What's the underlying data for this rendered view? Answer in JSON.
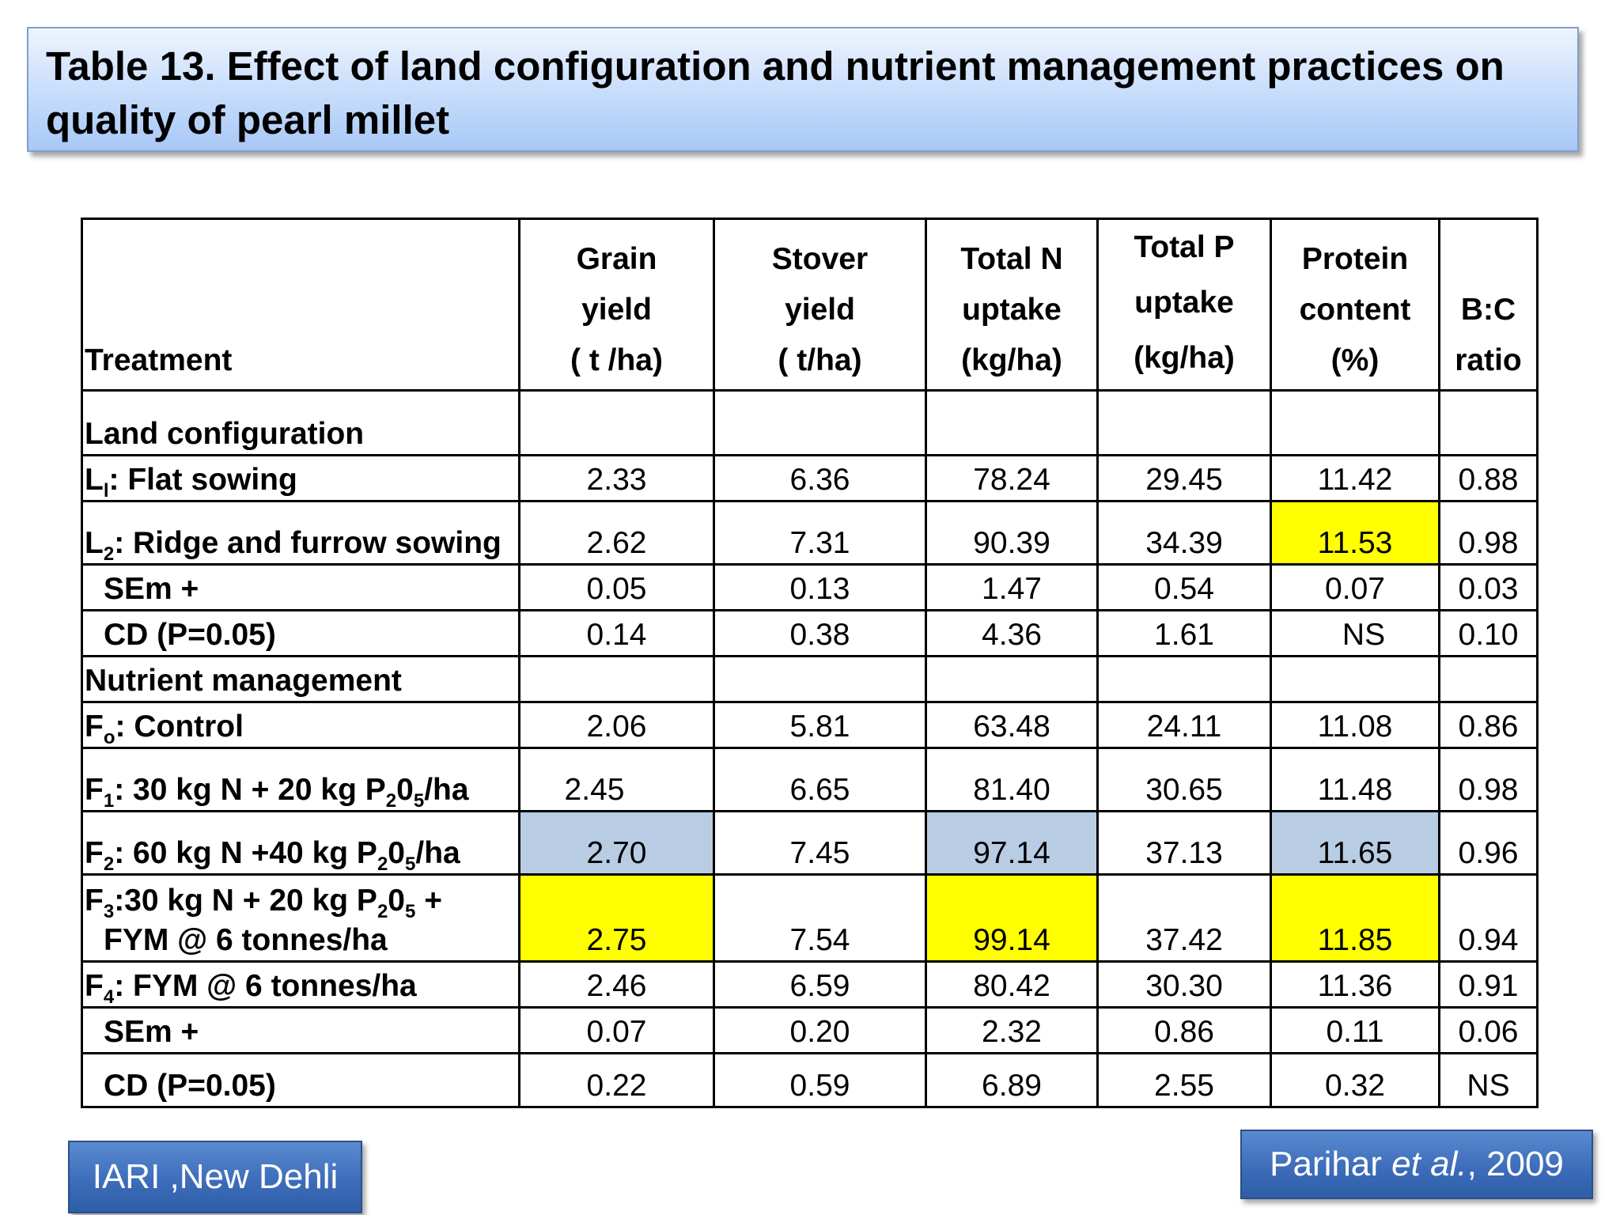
{
  "title": "Table 13. Effect of land configuration and nutrient management practices on quality of pearl millet",
  "headers": {
    "treatment": "Treatment",
    "grain": [
      "Grain",
      "yield",
      "( t /ha)"
    ],
    "stover": [
      "Stover",
      "yield",
      "( t/ha)"
    ],
    "total_n": [
      "Total N",
      "uptake",
      "(kg/ha)"
    ],
    "total_p": [
      "Total P",
      "uptake",
      "(kg/ha)"
    ],
    "protein": [
      "Protein",
      "content",
      "(%)"
    ],
    "bc": [
      "B:C",
      "ratio"
    ]
  },
  "sections": {
    "land": "Land configuration",
    "nutrient": "Nutrient management"
  },
  "rows": [
    {
      "label": "Flat sowing",
      "prefix": "L",
      "sub": "l",
      "values": [
        "2.33",
        "6.36",
        "78.24",
        "29.45",
        "11.42",
        "0.88"
      ]
    },
    {
      "label": "Ridge and furrow sowing",
      "prefix": "L",
      "sub": "2",
      "values": [
        "2.62",
        "7.31",
        "90.39",
        "34.39",
        "11.53",
        "0.98"
      ]
    },
    {
      "label": "SEm +",
      "values": [
        "0.05",
        "0.13",
        "1.47",
        "0.54",
        "0.07",
        "0.03"
      ]
    },
    {
      "label": "CD (P=0.05)",
      "values": [
        "0.14",
        "0.38",
        "4.36",
        "1.61",
        "NS",
        "0.10"
      ]
    },
    {
      "label": "Control",
      "prefix": "F",
      "sub": "o",
      "values": [
        "2.06",
        "5.81",
        "63.48",
        "24.11",
        "11.08",
        "0.86"
      ]
    },
    {
      "label_parts": [
        "F",
        "1",
        ": 30 kg N + 20 kg P",
        "2",
        "0",
        "5",
        "/ha"
      ],
      "values": [
        "2.45",
        "6.65",
        "81.40",
        "30.65",
        "11.48",
        "0.98"
      ]
    },
    {
      "label_parts": [
        "F",
        "2",
        ": 60 kg N +40 kg P",
        "2",
        "0",
        "5",
        "/ha"
      ],
      "values": [
        "2.70",
        "7.45",
        "97.14",
        "37.13",
        "11.65",
        "0.96"
      ]
    },
    {
      "label_parts": [
        "F",
        "3",
        ":30 kg N + 20 kg P",
        "2",
        "0",
        "5",
        " +",
        "FYM @ 6 tonnes/ha"
      ],
      "values": [
        "2.75",
        "7.54",
        "99.14",
        "37.42",
        "11.85",
        "0.94"
      ]
    },
    {
      "label": "FYM @ 6 tonnes/ha",
      "prefix": "F",
      "sub": "4",
      "values": [
        "2.46",
        "6.59",
        "80.42",
        "30.30",
        "11.36",
        "0.91"
      ]
    },
    {
      "label": "SEm +",
      "values": [
        "0.07",
        "0.20",
        "2.32",
        "0.86",
        "0.11",
        "0.06"
      ]
    },
    {
      "label": "CD (P=0.05)",
      "values": [
        "0.22",
        "0.59",
        "6.89",
        "2.55",
        "0.32",
        "NS"
      ]
    }
  ],
  "highlight_colors": {
    "yellow": "#ffff00",
    "blue": "#b8cce4"
  },
  "footer": {
    "left": "IARI ,New Dehli",
    "right_name": "Parihar ",
    "right_etal": "et al.",
    "right_year": ", 2009"
  }
}
